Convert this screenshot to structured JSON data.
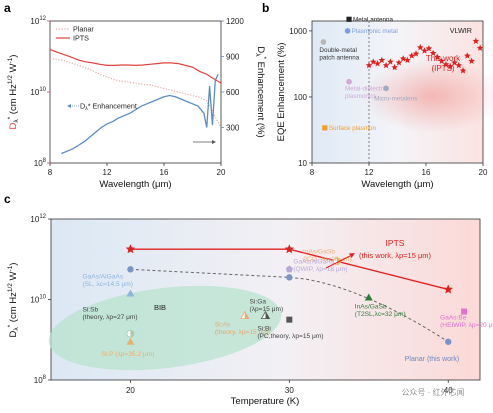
{
  "chart_data": [
    {
      "panel": "a",
      "type": "line",
      "xlabel": "Wavelength (μm)",
      "ylabel_left": "Dλ* (cm Hz1/2 W⁻¹)",
      "ylabel_right": "Dλ* Enhancement (%)",
      "xlim": [
        8,
        20
      ],
      "x_ticks": [
        "8",
        "12",
        "16",
        "20"
      ],
      "ylim_left_log": [
        8,
        12
      ],
      "y_left_ticks": [
        {
          "exp": 8,
          "label": "10",
          "sup": "8"
        },
        {
          "exp": 10,
          "label": "10",
          "sup": "10"
        },
        {
          "exp": 12,
          "label": "10",
          "sup": "12"
        }
      ],
      "ylim_right": [
        0,
        1200
      ],
      "y_right_ticks": [
        "300",
        "600",
        "900",
        "1200"
      ],
      "legend": [
        "Planar",
        "IPTS"
      ],
      "annotation": "Dλ* Enhancement",
      "colors": {
        "planar": "#e8a9a4",
        "ipts": "#e0423f",
        "enhancement": "#5b8cbd"
      },
      "series": [
        {
          "name": "Planar",
          "axis": "left",
          "style": "dotted",
          "x": [
            8,
            8.5,
            9,
            9.5,
            10,
            10.5,
            11,
            11.5,
            12,
            12.5,
            13,
            13.5,
            14,
            14.5,
            15,
            15.5,
            16,
            16.5,
            17,
            17.5,
            18,
            18.5,
            19,
            19.3,
            19.6,
            20
          ],
          "y_exp": [
            10.95,
            10.92,
            10.88,
            10.82,
            10.75,
            10.68,
            10.6,
            10.5,
            10.42,
            10.35,
            10.3,
            10.28,
            10.25,
            10.22,
            10.2,
            10.15,
            10.1,
            10.05,
            10.0,
            9.95,
            9.9,
            9.85,
            9.75,
            9.55,
            9.3,
            9.0
          ]
        },
        {
          "name": "IPTS",
          "axis": "left",
          "style": "solid",
          "x": [
            8,
            8.5,
            9,
            9.5,
            10,
            10.5,
            11,
            11.5,
            12,
            12.5,
            13,
            13.5,
            14,
            14.5,
            15,
            15.5,
            16,
            16.5,
            17,
            17.5,
            18,
            18.5,
            19,
            19.3,
            19.6,
            20
          ],
          "y_exp": [
            11.2,
            11.12,
            11.05,
            10.98,
            10.9,
            10.85,
            10.82,
            10.78,
            10.75,
            10.75,
            10.76,
            10.76,
            10.75,
            10.76,
            10.78,
            10.8,
            10.82,
            10.82,
            10.8,
            10.75,
            10.7,
            10.58,
            10.5,
            10.42,
            10.35,
            10.25
          ]
        },
        {
          "name": "Dλ* Enhancement",
          "axis": "right",
          "style": "solid",
          "x": [
            8.8,
            9.2,
            9.6,
            10.0,
            10.4,
            10.8,
            11.2,
            11.6,
            12.0,
            12.4,
            12.8,
            13.2,
            13.6,
            14.0,
            14.4,
            14.8,
            15.2,
            15.6,
            16.0,
            16.4,
            16.8,
            17.2,
            17.6,
            18.0,
            18.4,
            18.8,
            19.0,
            19.2,
            19.4,
            19.6,
            19.8
          ],
          "y": [
            80,
            100,
            120,
            150,
            180,
            220,
            260,
            300,
            330,
            350,
            380,
            400,
            420,
            450,
            480,
            500,
            520,
            540,
            560,
            570,
            560,
            540,
            520,
            500,
            480,
            420,
            300,
            650,
            320,
            700,
            750
          ]
        }
      ]
    },
    {
      "panel": "b",
      "type": "scatter",
      "xlabel": "Wavelength (μm)",
      "ylabel": "EQE Enhancement (%)",
      "xlim": [
        8,
        20
      ],
      "x_ticks": [
        "8",
        "12",
        "16",
        "20"
      ],
      "ylim_log": [
        1,
        3.15
      ],
      "y_ticks": [
        "10",
        "100",
        "1000"
      ],
      "region_label": "VLWIR",
      "colors": {
        "this_work": "#e02020"
      },
      "points": [
        {
          "label": "Metal antenna",
          "x": 10.6,
          "y": 1500,
          "color": "#222222",
          "marker": "square"
        },
        {
          "label": "Plasmonic metal",
          "x": 10.5,
          "y": 1000,
          "color": "#7b9fd6",
          "marker": "circle"
        },
        {
          "label": "Double-metal patch antenna",
          "x": 8.8,
          "y": 680,
          "color": "#b7b7b7",
          "marker": "circle"
        },
        {
          "label": "Metal-dielectric plasmonics",
          "x": 10.6,
          "y": 170,
          "color": "#d1a8d8",
          "marker": "circle"
        },
        {
          "label": "Micro-metalens",
          "x": 13.2,
          "y": 135,
          "color": "#a2aabf",
          "marker": "circle"
        },
        {
          "label": "Surface plasmon",
          "x": 8.9,
          "y": 34,
          "color": "#f0a030",
          "marker": "square"
        }
      ],
      "this_work_label": [
        "This work",
        "(IPTS)"
      ],
      "this_work_x": [
        12.0,
        12.3,
        12.6,
        12.9,
        13.2,
        13.5,
        13.8,
        14.1,
        14.4,
        14.7,
        15.0,
        15.3,
        15.6,
        15.9,
        16.2,
        16.5,
        16.8,
        17.1,
        17.4,
        17.7,
        18.0,
        18.3,
        18.6,
        18.9,
        19.2,
        19.5,
        19.8
      ],
      "this_work_y": [
        300,
        340,
        320,
        360,
        300,
        340,
        280,
        330,
        380,
        360,
        420,
        450,
        560,
        500,
        540,
        460,
        400,
        350,
        310,
        290,
        330,
        300,
        250,
        420,
        350,
        700,
        550
      ]
    },
    {
      "panel": "c",
      "type": "scatter",
      "xlabel": "Temperature (K)",
      "ylabel": "Dλ* (cm Hz1/2 W⁻¹)",
      "xlim": [
        15,
        42
      ],
      "x_ticks": [
        "20",
        "30",
        "40"
      ],
      "ylim_log": [
        8,
        12
      ],
      "y_ticks": [
        {
          "exp": 8,
          "label": "10",
          "sup": "8"
        },
        {
          "exp": 10,
          "label": "10",
          "sup": "10"
        },
        {
          "exp": 12,
          "label": "10",
          "sup": "12"
        }
      ],
      "colors": {
        "ipts": "#e02020",
        "planar": "#7a93c8"
      },
      "ipts": {
        "label_1": "IPTS",
        "label_2": "(this work, λp=15 μm)",
        "x": [
          20,
          30,
          40
        ],
        "y_exp": [
          11.25,
          11.25,
          10.25
        ]
      },
      "planar": {
        "label": "Planar (this work)",
        "x": [
          20,
          30,
          40
        ],
        "y_exp": [
          10.75,
          10.55,
          8.95
        ]
      },
      "group_label": "BIB",
      "points": [
        {
          "label": "InAs/GaSb (ICQ, λc=18 μm)",
          "x": 33,
          "y_exp": 10.95,
          "color": "#f0b074",
          "marker": "half-circle"
        },
        {
          "label": "GaAs/AlGaAs (QWIP, λp=18 μm)",
          "x": 30,
          "y_exp": 10.75,
          "color": "#b7a9d8",
          "marker": "pentagon"
        },
        {
          "label": "GaAs/AlGaAs (SL, λc=14.5 μm)",
          "x": 20,
          "y_exp": 10.15,
          "color": "#8db4de",
          "marker": "triangle"
        },
        {
          "label": "Si:Sb (theory, λp=27 μm)",
          "x": 20,
          "y_exp": 9.15,
          "color": "#aec9a7",
          "marker": "half-circle"
        },
        {
          "label": "Si:P (λp=35.2 μm)",
          "x": 20,
          "y_exp": 8.95,
          "color": "#e8b070",
          "marker": "triangle"
        },
        {
          "label": "Si:Ga (λp=15 μm)",
          "x": 28.5,
          "y_exp": 9.6,
          "color": "#555555",
          "marker": "half-triangle"
        },
        {
          "label": "Si:As (theory, λp=15 μm)",
          "x": 27.2,
          "y_exp": 9.6,
          "color": "#eaa86a",
          "marker": "half-triangle"
        },
        {
          "label": "Si:Bi (PC, theory, λp=15 μm)",
          "x": 30,
          "y_exp": 9.5,
          "color": "#555555",
          "marker": "square"
        },
        {
          "label": "InAs/GaSb (T2SL, λc=32 μm)",
          "x": 35,
          "y_exp": 10.05,
          "color": "#2f7d3a",
          "marker": "triangle"
        },
        {
          "label": "GaAs:Be (HEIWIP, λp=20 μm)",
          "x": 41,
          "y_exp": 9.7,
          "color": "#e070c8",
          "marker": "square"
        }
      ]
    }
  ],
  "watermark": "公众号 · 红外芯闻"
}
